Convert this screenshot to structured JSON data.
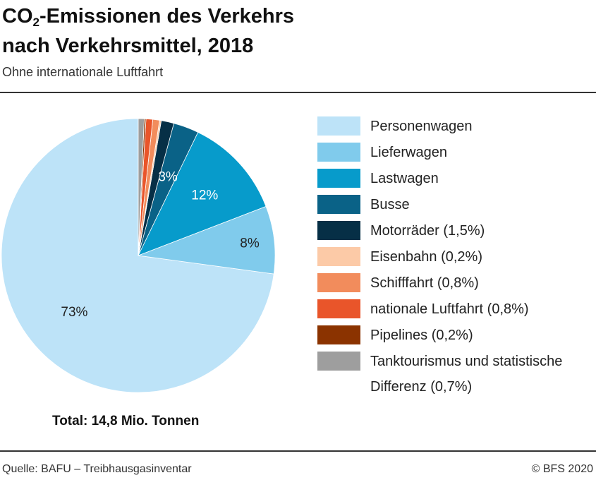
{
  "header": {
    "title_prefix": "CO",
    "title_sub": "2",
    "title_line1_rest": "-Emissionen des Verkehrs",
    "title_line2": "nach Verkehrsmittel, 2018",
    "subtitle": "Ohne internationale Luftfahrt"
  },
  "chart_data": {
    "type": "pie",
    "title": "CO2-Emissionen des Verkehrs nach Verkehrsmittel, 2018",
    "subtitle": "Ohne internationale Luftfahrt",
    "total_label": "Total: 14,8 Mio. Tonnen",
    "slices": [
      {
        "name": "Personenwagen",
        "legend": "Personenwagen",
        "value": 73.0,
        "label": "73%",
        "color": "#bde3f8"
      },
      {
        "name": "Lieferwagen",
        "legend": "Lieferwagen",
        "value": 8.0,
        "label": "8%",
        "color": "#80cbec"
      },
      {
        "name": "Lastwagen",
        "legend": "Lastwagen",
        "value": 12.0,
        "label": "12%",
        "color": "#079bcb"
      },
      {
        "name": "Busse",
        "legend": "Busse",
        "value": 3.0,
        "label": "3%",
        "color": "#0a6287"
      },
      {
        "name": "Motorräder",
        "legend": "Motorräder (1,5%)",
        "value": 1.5,
        "label": "",
        "color": "#062f46"
      },
      {
        "name": "Eisenbahn",
        "legend": "Eisenbahn (0,2%)",
        "value": 0.2,
        "label": "",
        "color": "#fccaa7"
      },
      {
        "name": "Schifffahrt",
        "legend": "Schifffahrt (0,8%)",
        "value": 0.8,
        "label": "",
        "color": "#f28c5c"
      },
      {
        "name": "nationale Luftfahrt",
        "legend": "nationale Luftfahrt (0,8%)",
        "value": 0.8,
        "label": "",
        "color": "#e9552a"
      },
      {
        "name": "Pipelines",
        "legend": "Pipelines (0,2%)",
        "value": 0.2,
        "label": "",
        "color": "#8b3300"
      },
      {
        "name": "Tanktourismus und statistische Differenz",
        "legend": "Tanktourismus und statistische Differenz (0,7%)",
        "value": 0.7,
        "label": "",
        "color": "#9e9e9e"
      }
    ],
    "legend_position": "right"
  },
  "legend": {
    "items": [
      {
        "label": "Personenwagen",
        "color": "#bde3f8"
      },
      {
        "label": "Lieferwagen",
        "color": "#80cbec"
      },
      {
        "label": "Lastwagen",
        "color": "#079bcb"
      },
      {
        "label": "Busse",
        "color": "#0a6287"
      },
      {
        "label": "Motorräder (1,5%)",
        "color": "#062f46"
      },
      {
        "label": "Eisenbahn (0,2%)",
        "color": "#fccaa7"
      },
      {
        "label": "Schifffahrt (0,8%)",
        "color": "#f28c5c"
      },
      {
        "label": "nationale Luftfahrt (0,8%)",
        "color": "#e9552a"
      },
      {
        "label": "Pipelines (0,2%)",
        "color": "#8b3300"
      },
      {
        "label": "Tanktourismus und statistische",
        "label_line2": "Differenz (0,7%)",
        "color": "#9e9e9e"
      }
    ]
  },
  "footer": {
    "source": "Quelle: BAFU – Treibhausgasinventar",
    "copyright": "© BFS 2020"
  }
}
